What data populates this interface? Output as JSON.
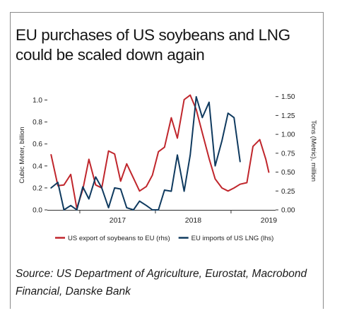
{
  "title": "EU purchases of US soybeans and LNG could be scaled down again",
  "source": "Source: US Department of Agriculture, Eurostat, Macrobond Financial, Danske Bank",
  "chart_data": {
    "type": "line",
    "left_axis_label": "Cubic Meter, billion",
    "right_axis_label": "Tons (Metric), million",
    "y_left": {
      "min": 0,
      "max": 1.1,
      "ticks": [
        "0.0",
        "0.2",
        "0.4",
        "0.6",
        "0.8",
        "1.0"
      ]
    },
    "y_right": {
      "min": 0,
      "max": 1.6,
      "ticks": [
        "0.00",
        "0.25",
        "0.50",
        "0.75",
        "1.00",
        "1.25",
        "1.50"
      ]
    },
    "x_range": [
      2016.58,
      2019.58
    ],
    "x_ticks": [
      "2017",
      "2018",
      "2019"
    ],
    "series": [
      {
        "name": "US export of soybeans to EU (rhs)",
        "axis": "right",
        "color": "#c0262c",
        "points": [
          [
            2016.62,
            0.73
          ],
          [
            2016.71,
            0.32
          ],
          [
            2016.79,
            0.33
          ],
          [
            2016.88,
            0.47
          ],
          [
            2016.96,
            0.02
          ],
          [
            2017.04,
            0.27
          ],
          [
            2017.12,
            0.67
          ],
          [
            2017.21,
            0.33
          ],
          [
            2017.29,
            0.29
          ],
          [
            2017.38,
            0.78
          ],
          [
            2017.46,
            0.74
          ],
          [
            2017.54,
            0.38
          ],
          [
            2017.62,
            0.61
          ],
          [
            2017.71,
            0.42
          ],
          [
            2017.79,
            0.25
          ],
          [
            2017.88,
            0.31
          ],
          [
            2017.96,
            0.46
          ],
          [
            2018.04,
            0.77
          ],
          [
            2018.12,
            0.83
          ],
          [
            2018.21,
            1.22
          ],
          [
            2018.29,
            0.95
          ],
          [
            2018.38,
            1.46
          ],
          [
            2018.46,
            1.52
          ],
          [
            2018.54,
            1.33
          ],
          [
            2018.62,
            1.02
          ],
          [
            2018.71,
            0.68
          ],
          [
            2018.79,
            0.41
          ],
          [
            2018.88,
            0.29
          ],
          [
            2018.96,
            0.25
          ],
          [
            2019.04,
            0.29
          ],
          [
            2019.12,
            0.34
          ],
          [
            2019.21,
            0.36
          ],
          [
            2019.29,
            0.84
          ],
          [
            2019.38,
            0.93
          ],
          [
            2019.46,
            0.67
          ],
          [
            2019.5,
            0.5
          ]
        ]
      },
      {
        "name": "EU imports of US LNG (lhs)",
        "axis": "left",
        "color": "#0f3a5f",
        "points": [
          [
            2016.62,
            0.2
          ],
          [
            2016.71,
            0.25
          ],
          [
            2016.79,
            0.0
          ],
          [
            2016.88,
            0.04
          ],
          [
            2016.96,
            0.0
          ],
          [
            2017.04,
            0.21
          ],
          [
            2017.12,
            0.1
          ],
          [
            2017.21,
            0.3
          ],
          [
            2017.29,
            0.2
          ],
          [
            2017.38,
            0.02
          ],
          [
            2017.46,
            0.2
          ],
          [
            2017.54,
            0.19
          ],
          [
            2017.62,
            0.02
          ],
          [
            2017.71,
            0.0
          ],
          [
            2017.79,
            0.08
          ],
          [
            2017.88,
            0.04
          ],
          [
            2017.96,
            0.0
          ],
          [
            2018.04,
            0.0
          ],
          [
            2018.12,
            0.18
          ],
          [
            2018.21,
            0.17
          ],
          [
            2018.29,
            0.5
          ],
          [
            2018.38,
            0.17
          ],
          [
            2018.46,
            0.5
          ],
          [
            2018.54,
            1.03
          ],
          [
            2018.62,
            0.84
          ],
          [
            2018.71,
            0.98
          ],
          [
            2018.79,
            0.4
          ],
          [
            2018.88,
            0.63
          ],
          [
            2018.96,
            0.88
          ],
          [
            2019.04,
            0.84
          ],
          [
            2019.12,
            0.44
          ]
        ]
      }
    ]
  }
}
